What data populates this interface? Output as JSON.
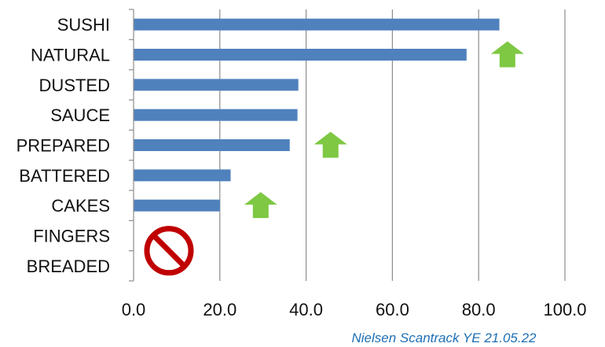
{
  "chart_data": {
    "type": "bar",
    "orientation": "horizontal",
    "categories": [
      "SUSHI",
      "NATURAL",
      "DUSTED",
      "SAUCE",
      "PREPARED",
      "BATTERED",
      "CAKES",
      "FINGERS",
      "BREADED"
    ],
    "values": [
      84.8,
      77.2,
      38.2,
      38.0,
      36.2,
      22.5,
      20.0,
      null,
      null
    ],
    "xlim": [
      0,
      100
    ],
    "xticks": [
      "0.0",
      "20.0",
      "40.0",
      "60.0",
      "80.0",
      "100.0"
    ],
    "grid": true,
    "bar_color": "#4f81bd",
    "annotations": {
      "up_arrows": [
        "NATURAL",
        "PREPARED",
        "CAKES"
      ],
      "up_arrow_color": "#7ec843",
      "prohibited_sign": [
        "FINGERS",
        "BREADED"
      ],
      "prohibited_sign_color": "#c00000"
    },
    "source_note": "Nielsen Scantrack YE 21.05.22"
  }
}
